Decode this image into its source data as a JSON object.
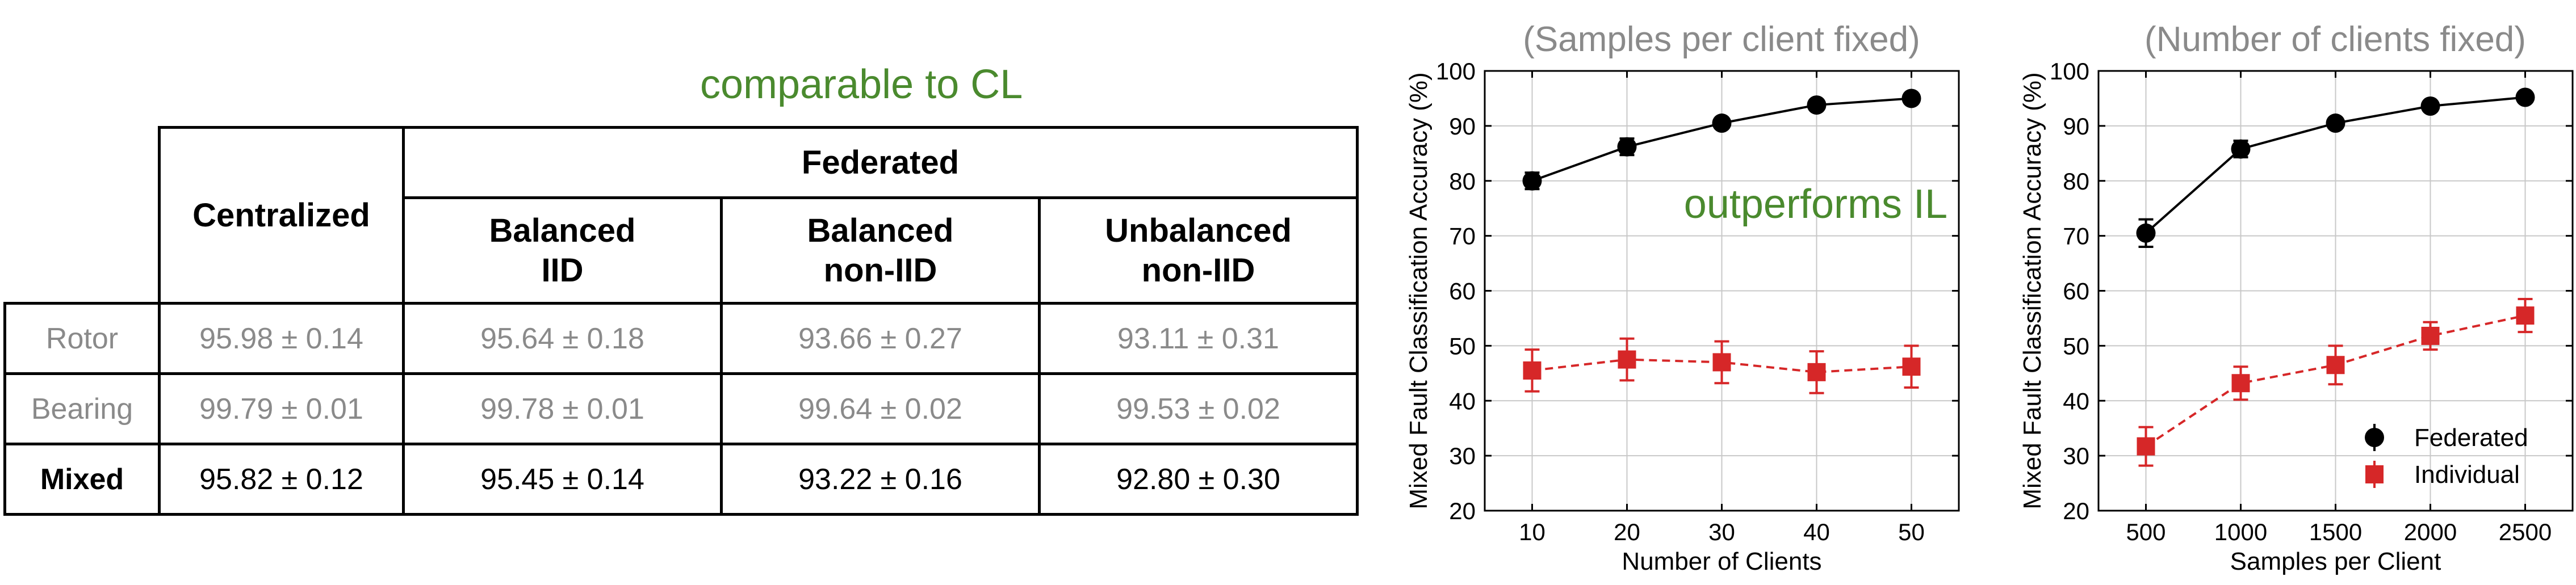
{
  "table": {
    "annotation": "comparable to CL",
    "header": {
      "centralized": "Centralized",
      "federated": "Federated",
      "sub": [
        {
          "line1": "Balanced",
          "line2": "IID"
        },
        {
          "line1": "Balanced",
          "line2": "non-IID"
        },
        {
          "line1": "Unbalanced",
          "line2": "non-IID"
        }
      ]
    },
    "rows": [
      {
        "label": "Rotor",
        "values": [
          "95.98 ± 0.14",
          "95.64 ± 0.18",
          "93.66 ± 0.27",
          "93.11 ± 0.31"
        ]
      },
      {
        "label": "Bearing",
        "values": [
          "99.79 ± 0.01",
          "99.78 ± 0.01",
          "99.64 ± 0.02",
          "99.53 ± 0.02"
        ]
      },
      {
        "label": "Mixed",
        "values": [
          "95.82 ± 0.12",
          "95.45 ± 0.14",
          "93.22 ± 0.16",
          "92.80 ± 0.30"
        ]
      }
    ]
  },
  "colors": {
    "federated": "#000000",
    "individual": "#d62728",
    "annotation": "#4a8a2e",
    "title": "#8a8a8a"
  },
  "chart_data": [
    {
      "type": "line",
      "title": "(Samples per client fixed)",
      "annotation": "outperforms IL",
      "xlabel": "Number of Clients",
      "ylabel": "Mixed Fault Classification Accuracy (%)",
      "x": [
        10,
        20,
        30,
        40,
        50
      ],
      "xticks": [
        "10",
        "20",
        "30",
        "40",
        "50"
      ],
      "xlim": [
        5,
        55
      ],
      "ylim": [
        20,
        100
      ],
      "yticks": [
        20,
        30,
        40,
        50,
        60,
        70,
        80,
        90,
        100
      ],
      "grid": true,
      "series": [
        {
          "name": "Federated",
          "marker": "circle",
          "line": "solid",
          "values": [
            80,
            86.2,
            90.5,
            93.8,
            95
          ],
          "errors": [
            1.5,
            1.5,
            0.8,
            0.6,
            0.5
          ]
        },
        {
          "name": "Individual",
          "marker": "square",
          "line": "dashed",
          "values": [
            45.5,
            47.5,
            47,
            45.2,
            46.2
          ],
          "errors": [
            3.8,
            3.8,
            3.8,
            3.8,
            3.8
          ]
        }
      ]
    },
    {
      "type": "line",
      "title": "(Number of clients fixed)",
      "xlabel": "Samples per Client",
      "ylabel": "Mixed Fault Classification Accuracy (%)",
      "x": [
        500,
        1000,
        1500,
        2000,
        2500
      ],
      "xticks": [
        "500",
        "1000",
        "1500",
        "2000",
        "2500"
      ],
      "xlim": [
        250,
        2750
      ],
      "ylim": [
        20,
        100
      ],
      "yticks": [
        20,
        30,
        40,
        50,
        60,
        70,
        80,
        90,
        100
      ],
      "grid": true,
      "legend": "lower-right",
      "series": [
        {
          "name": "Federated",
          "marker": "circle",
          "line": "solid",
          "values": [
            70.5,
            85.8,
            90.5,
            93.6,
            95.2
          ],
          "errors": [
            2.5,
            1.5,
            0.8,
            0.6,
            0.5
          ]
        },
        {
          "name": "Individual",
          "marker": "square",
          "line": "dashed",
          "values": [
            31.7,
            43.2,
            46.5,
            51.8,
            55.5
          ],
          "errors": [
            3.5,
            3.0,
            3.5,
            2.5,
            3.0
          ]
        }
      ]
    }
  ]
}
